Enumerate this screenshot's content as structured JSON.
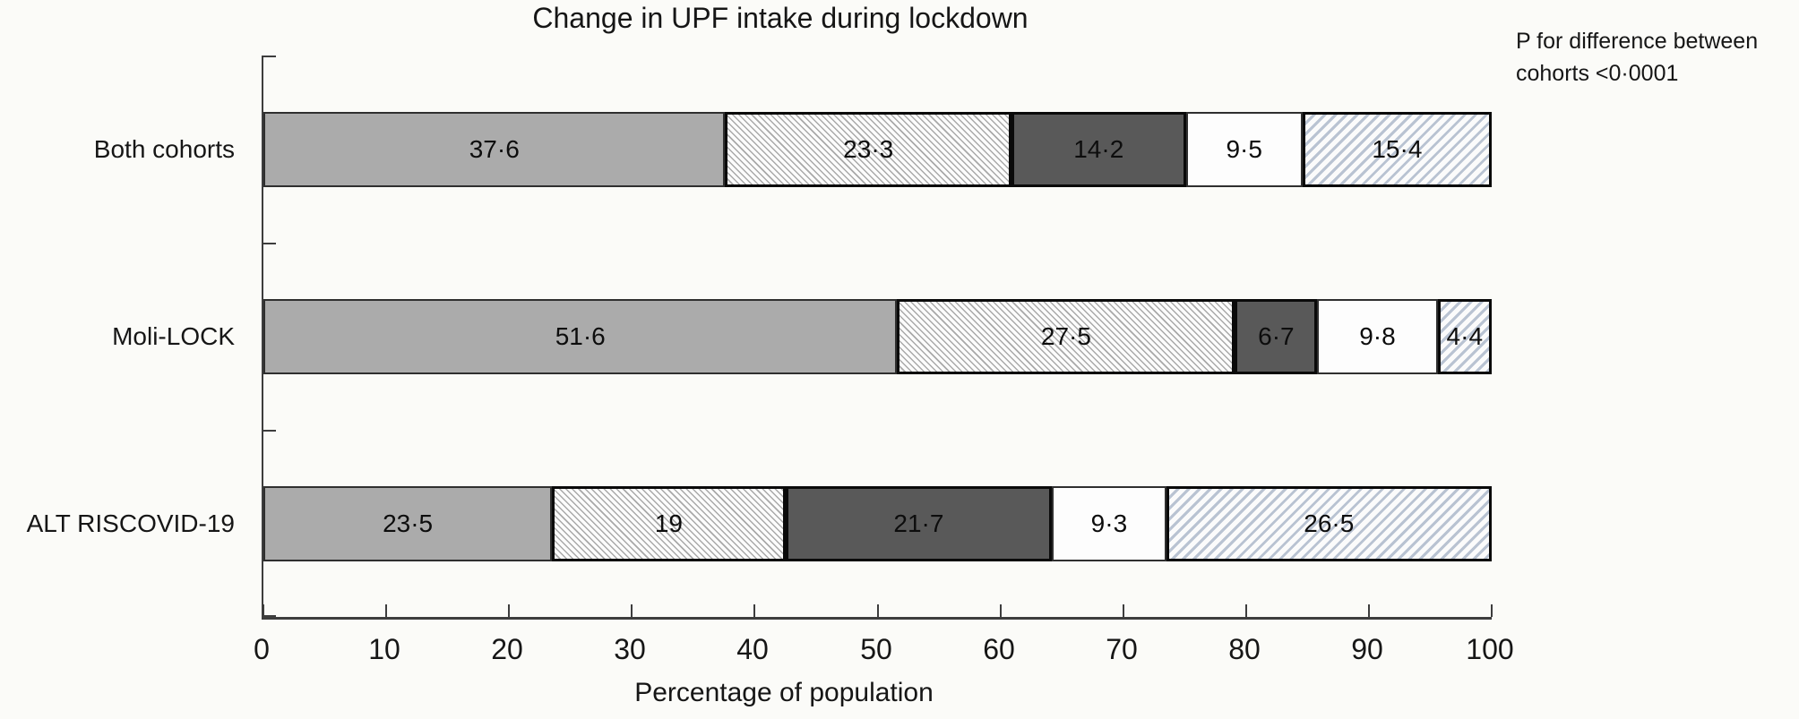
{
  "chart_data": {
    "type": "bar",
    "variant": "horizontal-stacked",
    "title": "Change in UPF intake during lockdown",
    "categories": [
      "Both cohorts",
      "Moli-LOCK",
      "ALT RISCOVID-19"
    ],
    "series": [
      {
        "name": "solid-gray",
        "pattern": "solid",
        "color": "#ababab",
        "values": [
          37.6,
          51.6,
          23.5
        ],
        "labels": [
          "37·6",
          "51·6",
          "23·5"
        ]
      },
      {
        "name": "fine-hatch-backslash",
        "pattern": "diagonal-hatch-backslash",
        "color": "#a9a9a9",
        "values": [
          23.3,
          27.5,
          19
        ],
        "labels": [
          "23·3",
          "27·5",
          "19"
        ]
      },
      {
        "name": "dark-gray",
        "pattern": "solid",
        "color": "#595959",
        "values": [
          14.2,
          6.7,
          21.7
        ],
        "labels": [
          "14·2",
          "6·7",
          "21·7"
        ]
      },
      {
        "name": "white",
        "pattern": "solid",
        "color": "#fdfdfd",
        "values": [
          9.5,
          9.8,
          9.3
        ],
        "labels": [
          "9·5",
          "9·8",
          "9·3"
        ]
      },
      {
        "name": "light-blue-hatch-slash",
        "pattern": "diagonal-hatch-slash",
        "color": "#b9c3d2",
        "values": [
          15.4,
          4.4,
          26.5
        ],
        "labels": [
          "15·4",
          "4·4",
          "26·5"
        ]
      }
    ],
    "xlabel": "Percentage of population",
    "xlim": [
      0,
      100
    ],
    "x_ticks": [
      0,
      10,
      20,
      30,
      40,
      50,
      60,
      70,
      80,
      90,
      100
    ],
    "grid": false,
    "legend": "none",
    "annotation": "P for difference between cohorts <0·0001"
  },
  "annotation": {
    "line1": "P for difference between",
    "line2": "cohorts <0·0001"
  }
}
